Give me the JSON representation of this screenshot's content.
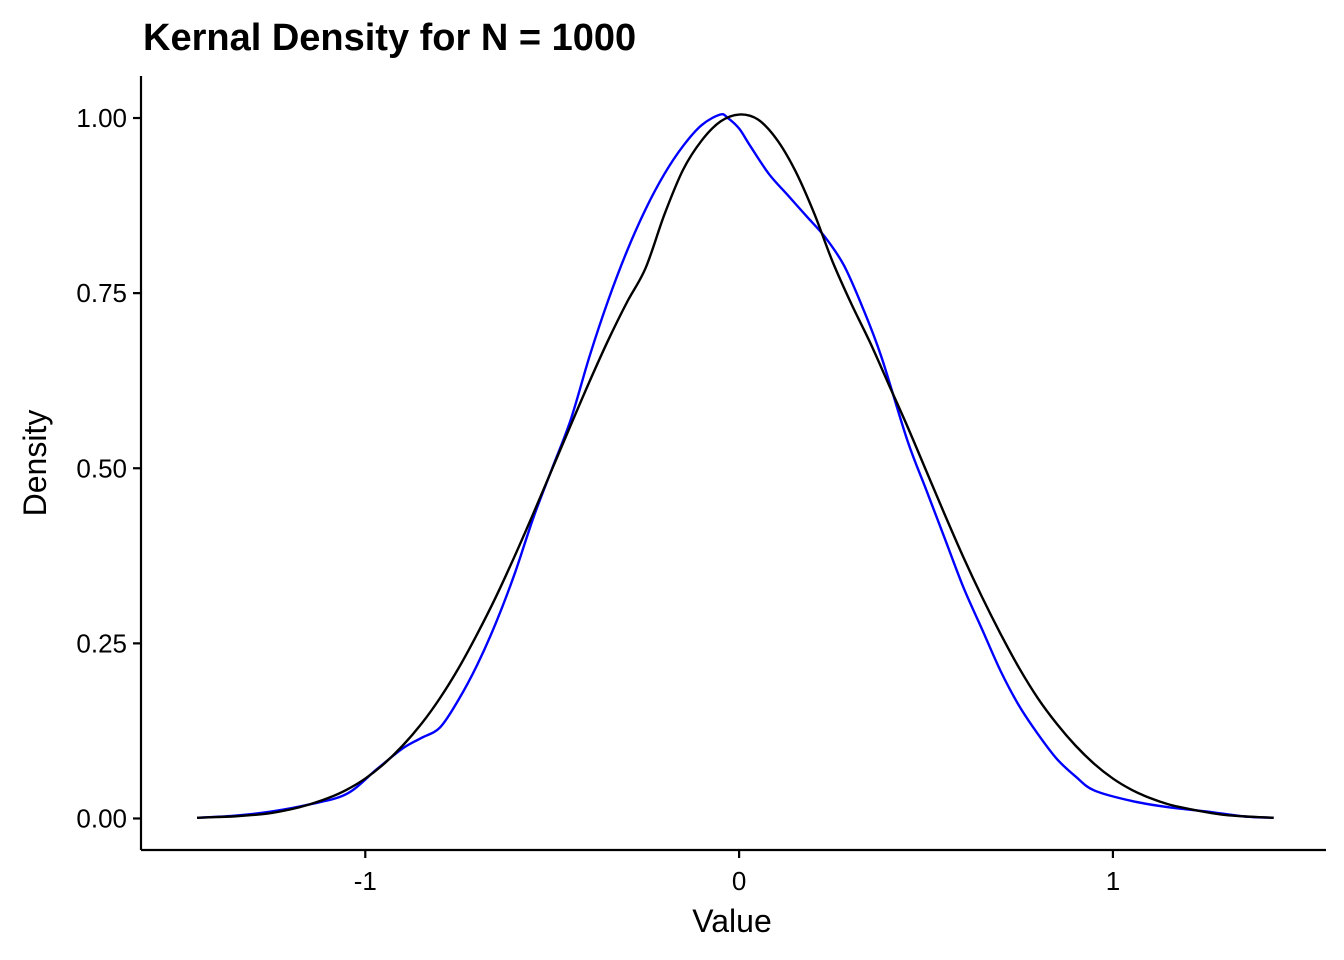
{
  "chart_data": {
    "type": "line",
    "title": "Kernal Density for N = 1000",
    "xlabel": "Value",
    "ylabel": "Density",
    "xlim": [
      -1.6,
      1.57
    ],
    "ylim": [
      -0.045,
      1.06
    ],
    "x_ticks": [
      -1,
      0,
      1
    ],
    "x_tick_labels": [
      "-1",
      "0",
      "1"
    ],
    "y_ticks": [
      0,
      0.25,
      0.5,
      0.75,
      1
    ],
    "y_tick_labels": [
      "0.00",
      "0.25",
      "0.50",
      "0.75",
      "1.00"
    ],
    "grid": false,
    "legend": "none",
    "series": [
      {
        "color": "#0000ff",
        "x": [
          -1.45,
          -1.35,
          -1.25,
          -1.15,
          -1.05,
          -0.97,
          -0.9,
          -0.85,
          -0.8,
          -0.75,
          -0.7,
          -0.65,
          -0.6,
          -0.55,
          -0.5,
          -0.45,
          -0.4,
          -0.35,
          -0.3,
          -0.25,
          -0.2,
          -0.15,
          -0.1,
          -0.05,
          -0.03,
          0.0,
          0.03,
          0.08,
          0.13,
          0.18,
          0.23,
          0.28,
          0.33,
          0.38,
          0.45,
          0.5,
          0.55,
          0.6,
          0.65,
          0.7,
          0.75,
          0.8,
          0.85,
          0.9,
          0.95,
          1.05,
          1.15,
          1.25,
          1.35,
          1.43
        ],
        "y": [
          0.001,
          0.004,
          0.01,
          0.02,
          0.035,
          0.07,
          0.1,
          0.115,
          0.13,
          0.17,
          0.22,
          0.28,
          0.35,
          0.43,
          0.5,
          0.57,
          0.66,
          0.74,
          0.81,
          0.87,
          0.92,
          0.96,
          0.99,
          1.005,
          1.0,
          0.985,
          0.96,
          0.92,
          0.89,
          0.86,
          0.83,
          0.79,
          0.73,
          0.66,
          0.54,
          0.47,
          0.4,
          0.33,
          0.27,
          0.21,
          0.16,
          0.12,
          0.085,
          0.06,
          0.04,
          0.025,
          0.016,
          0.01,
          0.003,
          0.001
        ]
      },
      {
        "color": "#000000",
        "x": [
          -1.45,
          -1.4,
          -1.35,
          -1.3,
          -1.25,
          -1.2,
          -1.15,
          -1.1,
          -1.05,
          -1.0,
          -0.95,
          -0.9,
          -0.85,
          -0.8,
          -0.75,
          -0.7,
          -0.65,
          -0.6,
          -0.55,
          -0.5,
          -0.45,
          -0.4,
          -0.35,
          -0.3,
          -0.25,
          -0.2,
          -0.15,
          -0.1,
          -0.05,
          0.0,
          0.05,
          0.1,
          0.15,
          0.2,
          0.25,
          0.3,
          0.35,
          0.4,
          0.45,
          0.5,
          0.55,
          0.6,
          0.65,
          0.7,
          0.75,
          0.8,
          0.85,
          0.9,
          0.95,
          1.0,
          1.05,
          1.1,
          1.15,
          1.2,
          1.25,
          1.3,
          1.35,
          1.43
        ],
        "y": [
          0.001,
          0.002,
          0.003,
          0.005,
          0.008,
          0.013,
          0.02,
          0.029,
          0.041,
          0.057,
          0.078,
          0.104,
          0.135,
          0.172,
          0.215,
          0.264,
          0.317,
          0.375,
          0.436,
          0.499,
          0.562,
          0.624,
          0.683,
          0.737,
          0.786,
          0.862,
          0.926,
          0.968,
          0.995,
          1.005,
          0.998,
          0.97,
          0.925,
          0.865,
          0.795,
          0.735,
          0.68,
          0.62,
          0.56,
          0.497,
          0.434,
          0.373,
          0.316,
          0.263,
          0.214,
          0.171,
          0.135,
          0.104,
          0.078,
          0.057,
          0.041,
          0.029,
          0.02,
          0.014,
          0.009,
          0.005,
          0.003,
          0.001
        ]
      }
    ]
  }
}
